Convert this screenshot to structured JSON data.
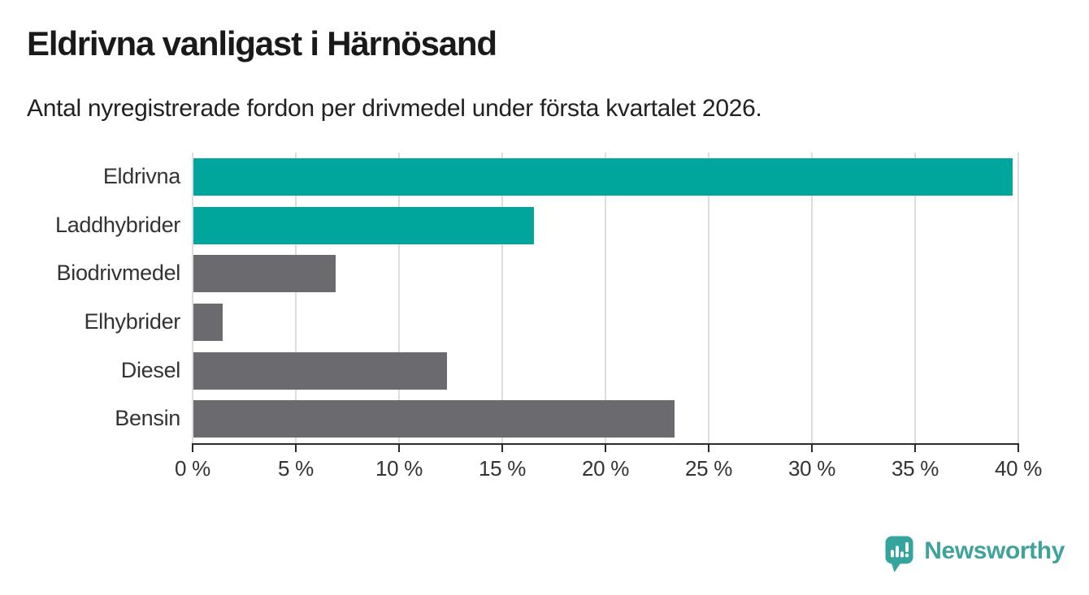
{
  "header": {
    "title": "Eldrivna vanligast i Härnösand",
    "subtitle": "Antal nyregistrerade fordon per drivmedel under första kvartalet 2026."
  },
  "chart_data": {
    "type": "bar",
    "orientation": "horizontal",
    "title": "Eldrivna vanligast i Härnösand",
    "subtitle": "Antal nyregistrerade fordon per drivmedel under första kvartalet 2026.",
    "categories": [
      "Eldrivna",
      "Laddhybrider",
      "Biodrivmedel",
      "Elhybrider",
      "Diesel",
      "Bensin"
    ],
    "values": [
      39.7,
      16.5,
      6.9,
      1.4,
      12.3,
      23.3
    ],
    "unit": "%",
    "xlim": [
      0,
      40
    ],
    "x_ticks": [
      0,
      5,
      10,
      15,
      20,
      25,
      30,
      35,
      40
    ],
    "x_tick_labels": [
      "0 %",
      "5 %",
      "10 %",
      "15 %",
      "20 %",
      "25 %",
      "30 %",
      "35 %",
      "40 %"
    ],
    "bar_colors": [
      "#00a59b",
      "#00a59b",
      "#6a6a6f",
      "#6a6a6f",
      "#6a6a6f",
      "#6a6a6f"
    ],
    "highlight_color": "#00a59b",
    "base_color": "#6a6a6f",
    "grid": true,
    "gridline_color": "#dddddd",
    "axis_color": "#2b2b2b",
    "label_color": "#333333",
    "legend": "none"
  },
  "branding": {
    "logo_text": "Newsworthy",
    "logo_text_color": "#3fa29b",
    "logo_mark_color": "#35a49c",
    "logo_mark_icon": "bar-chart-exclamation-pin"
  }
}
